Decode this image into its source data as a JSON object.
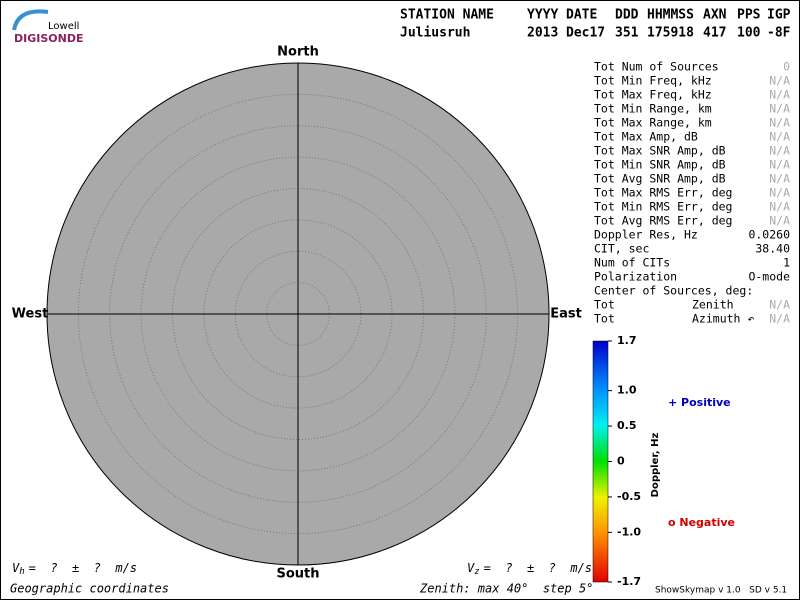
{
  "logo": {
    "top": "Lowell",
    "bottom": "DIGISONDE"
  },
  "header": {
    "labels": [
      "STATION NAME",
      "YYYY",
      "DATE",
      "DDD",
      "HHMMSS",
      "AXN",
      "PPS",
      "IGP"
    ],
    "values": [
      "Juliusruh",
      "2013",
      "Dec17",
      "351",
      "175918",
      "417",
      "100",
      "-8F"
    ]
  },
  "compass": {
    "north": "North",
    "south": "South",
    "west": "West",
    "east": "East"
  },
  "stats": [
    {
      "label": "Tot Num of Sources",
      "value": "0",
      "color": "#aaaaaa"
    },
    {
      "label": "Tot Min Freq, kHz",
      "value": "N/A",
      "color": "#aaaaaa"
    },
    {
      "label": "Tot Max Freq, kHz",
      "value": "N/A",
      "color": "#aaaaaa"
    },
    {
      "label": "Tot Min Range, km",
      "value": "N/A",
      "color": "#aaaaaa"
    },
    {
      "label": "Tot Max Range, km",
      "value": "N/A",
      "color": "#aaaaaa"
    },
    {
      "label": "Tot Max Amp, dB",
      "value": "N/A",
      "color": "#aaaaaa"
    },
    {
      "label": "Tot Max SNR Amp, dB",
      "value": "N/A",
      "color": "#aaaaaa"
    },
    {
      "label": "Tot Min SNR Amp, dB",
      "value": "N/A",
      "color": "#aaaaaa"
    },
    {
      "label": "Tot Avg SNR Amp, dB",
      "value": "N/A",
      "color": "#aaaaaa"
    },
    {
      "label": "Tot Max RMS Err, deg",
      "value": "N/A",
      "color": "#aaaaaa"
    },
    {
      "label": "Tot Min RMS Err, deg",
      "value": "N/A",
      "color": "#aaaaaa"
    },
    {
      "label": "Tot Avg RMS Err, deg",
      "value": "N/A",
      "color": "#aaaaaa"
    },
    {
      "label": "Doppler Res, Hz",
      "value": "0.0260",
      "color": "#000000"
    },
    {
      "label": "CIT, sec",
      "value": "38.40",
      "color": "#000000"
    },
    {
      "label": "Num of CITs",
      "value": "1",
      "color": "#000000"
    },
    {
      "label": "Polarization",
      "value": "O-mode",
      "color": "#000000"
    },
    {
      "label": "Center of Sources, deg:"
    },
    {
      "label": "Tot",
      "sublabel": "Zenith",
      "value": "N/A",
      "color": "#aaaaaa"
    },
    {
      "label": "Tot",
      "sublabel": "Azimuth ↶",
      "value": "N/A",
      "color": "#aaaaaa"
    }
  ],
  "colorbar": {
    "title": "Doppler, Hz",
    "lim": [
      -1.7,
      1.7
    ],
    "ticks": [
      1.7,
      {
        "value": 1,
        "label": "1.0"
      },
      0.5,
      0,
      -0.5,
      {
        "value": -1,
        "label": "-1.0"
      },
      -1.7
    ]
  },
  "legend": {
    "positive": "+ Positive",
    "negative": "o Negative"
  },
  "velocity": {
    "vh_symbol": "V",
    "vh_sub": "h",
    "vh_text": "=  ?  ±  ?  m/s",
    "vz_symbol": "V",
    "vz_sub": "z",
    "vz_text": "=  ?  ±  ?  m/s"
  },
  "footer": {
    "coords": "Geographic coordinates",
    "zenith": "Zenith: max 40°  step 5°",
    "version": "ShowSkymap v 1.0   SD v 5.1"
  }
}
